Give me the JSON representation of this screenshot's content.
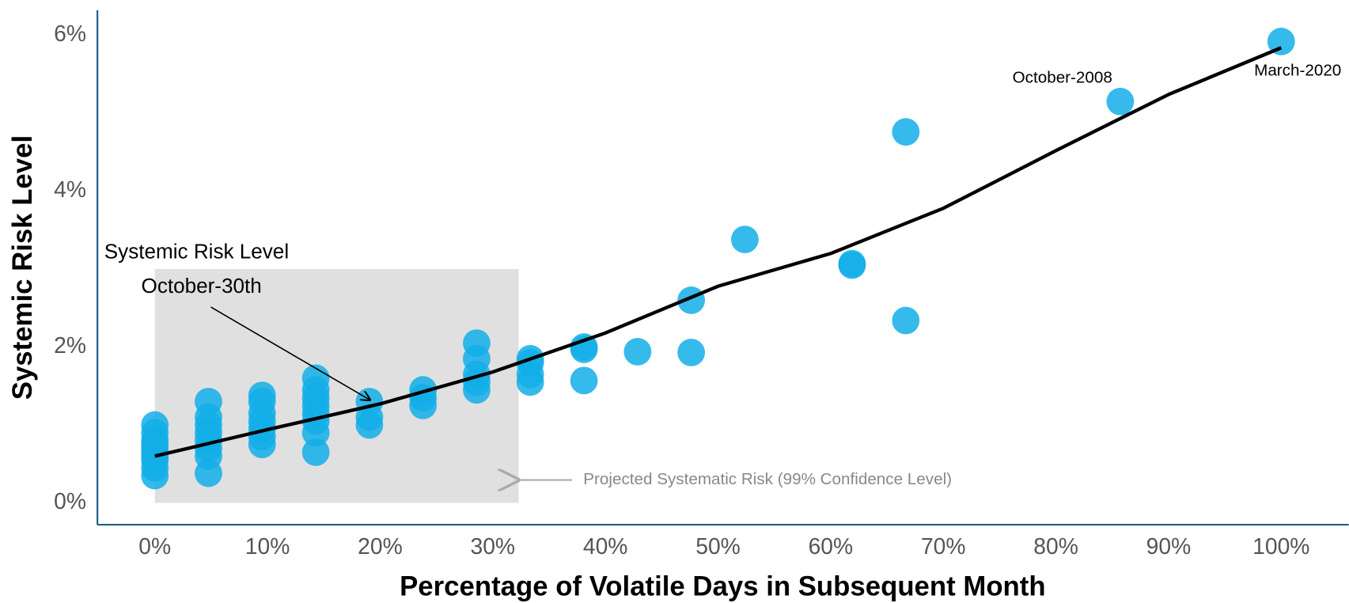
{
  "chart_data": {
    "type": "scatter",
    "x_label": "Percentage of Volatile Days in Subsequent Month",
    "y_label": "Systemic Risk Level",
    "xlim": [
      -5.1,
      106
    ],
    "ylim": [
      -0.28,
      6.32
    ],
    "xticks": [
      {
        "value": 0,
        "label": "0%"
      },
      {
        "value": 10,
        "label": "10%"
      },
      {
        "value": 20,
        "label": "20%"
      },
      {
        "value": 30,
        "label": "30%"
      },
      {
        "value": 40,
        "label": "40%"
      },
      {
        "value": 50,
        "label": "50%"
      },
      {
        "value": 60,
        "label": "60%"
      },
      {
        "value": 70,
        "label": "70%"
      },
      {
        "value": 80,
        "label": "80%"
      },
      {
        "value": 90,
        "label": "90%"
      },
      {
        "value": 100,
        "label": "100%"
      }
    ],
    "yticks": [
      {
        "value": 0,
        "label": "0%"
      },
      {
        "value": 2,
        "label": "2%"
      },
      {
        "value": 4,
        "label": "4%"
      },
      {
        "value": 6,
        "label": "6%"
      }
    ],
    "points": {
      "color": "#12aee8",
      "x": [
        0,
        0,
        0,
        0,
        0,
        0,
        0,
        0,
        0,
        0,
        4.76,
        4.76,
        4.76,
        4.76,
        4.76,
        4.76,
        4.76,
        4.76,
        9.52,
        9.52,
        9.52,
        9.52,
        9.52,
        9.52,
        9.52,
        14.29,
        14.29,
        14.29,
        14.29,
        14.29,
        14.29,
        14.29,
        14.29,
        19.05,
        19.05,
        19.05,
        23.81,
        23.81,
        23.81,
        28.57,
        28.57,
        28.57,
        28.57,
        28.57,
        33.33,
        33.33,
        33.33,
        33.33,
        38.1,
        38.1,
        38.1,
        42.86,
        47.62,
        47.62,
        52.38,
        61.9,
        61.9,
        66.67,
        66.67,
        85.71,
        100
      ],
      "y": [
        0.35,
        0.45,
        0.55,
        0.6,
        0.65,
        0.7,
        0.75,
        0.8,
        0.9,
        1.0,
        0.38,
        0.6,
        0.7,
        0.8,
        0.9,
        1.0,
        1.1,
        1.3,
        0.75,
        0.85,
        0.95,
        1.05,
        1.15,
        1.3,
        1.38,
        0.65,
        0.9,
        1.05,
        1.15,
        1.25,
        1.35,
        1.45,
        1.6,
        1.0,
        1.1,
        1.3,
        1.25,
        1.35,
        1.45,
        1.45,
        1.55,
        1.65,
        1.85,
        2.05,
        1.55,
        1.65,
        1.8,
        1.85,
        1.57,
        1.97,
        2.0,
        1.94,
        1.93,
        2.6,
        3.38,
        3.05,
        3.07,
        2.34,
        4.76,
        5.15,
        5.92
      ]
    },
    "trend": {
      "color": "#000000",
      "x": [
        0,
        10,
        20,
        30,
        40,
        50,
        60,
        70,
        80,
        90,
        100
      ],
      "y": [
        0.6,
        0.94,
        1.27,
        1.68,
        2.18,
        2.78,
        3.2,
        3.78,
        4.52,
        5.24,
        5.84
      ]
    },
    "projection_box": {
      "color": "#e0e0e0",
      "x": [
        0,
        32.3
      ],
      "y": [
        0,
        3.0
      ]
    },
    "annotations": [
      "Systemic Risk Level",
      "October-30th",
      "October-2008",
      "March-2020",
      "Projected Systematic Risk (99% Confidence Level)"
    ]
  }
}
